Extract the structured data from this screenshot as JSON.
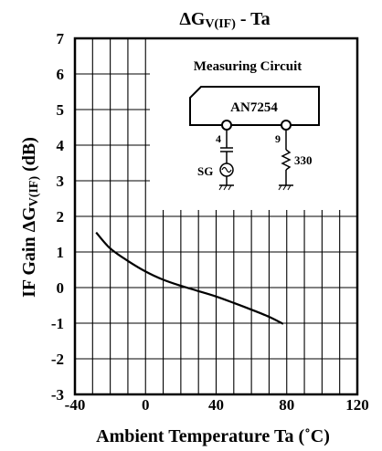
{
  "chart_data": {
    "type": "line",
    "title_main": "ΔG",
    "title_sub": "V(IF)",
    "title_rest": " - Ta",
    "ylabel_main": "IF Gain ΔG",
    "ylabel_sub": "V(IF)",
    "ylabel_rest": " (dB)",
    "xlabel": "Ambient Temperature Ta (˚C)",
    "xlim": [
      -40,
      120
    ],
    "ylim": [
      -3,
      7
    ],
    "xticks": [
      "-40",
      "0",
      "40",
      "80",
      "120"
    ],
    "yticks": [
      "7",
      "6",
      "5",
      "4",
      "3",
      "2",
      "1",
      "0",
      "-1",
      "-2",
      "-3"
    ],
    "grid": true,
    "series": [
      {
        "x": [
          -28,
          -20,
          -10,
          0,
          10,
          20,
          30,
          40,
          50,
          60,
          70,
          78
        ],
        "y": [
          1.55,
          1.1,
          0.75,
          0.45,
          0.22,
          0.05,
          -0.1,
          -0.25,
          -0.43,
          -0.62,
          -0.82,
          -1.02
        ]
      }
    ],
    "inset": {
      "title": "Measuring Circuit",
      "chip": "AN7254",
      "pin_left": "4",
      "pin_right": "9",
      "source_label": "SG",
      "resistor_label": "330"
    }
  }
}
